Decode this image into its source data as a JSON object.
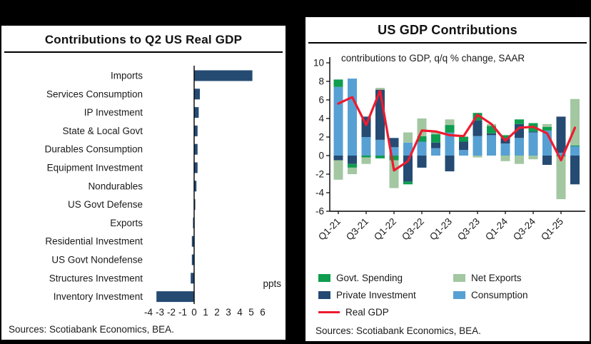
{
  "window": {
    "background": "#000000",
    "panel_background": "#ffffff"
  },
  "left_panel": {
    "title": "Contributions to Q2 US Real GDP",
    "axis_unit_label": "ppts",
    "source": "Sources: Scotiabank Economics, BEA."
  },
  "right_panel": {
    "title": "US GDP Contributions",
    "subtitle": "contributions to GDP, q/q % change, SAAR",
    "source": "Sources: Scotiabank Economics, BEA.",
    "legend": [
      {
        "label": "Govt. Spending",
        "color": "#0f9d4f",
        "type": "box"
      },
      {
        "label": "Net Exports",
        "color": "#a2c7a1",
        "type": "box"
      },
      {
        "label": "Private Investment",
        "color": "#254b73",
        "type": "box"
      },
      {
        "label": "Consumption",
        "color": "#57a0d3",
        "type": "box"
      },
      {
        "label": "Real GDP",
        "color": "#ed1b2f",
        "type": "line"
      }
    ]
  },
  "chart_data": [
    {
      "type": "bar",
      "orientation": "horizontal",
      "title": "Contributions to Q2 US Real GDP",
      "categories": [
        "Imports",
        "Services Consumption",
        "IP Investment",
        "State & Local Govt",
        "Durables Consumption",
        "Equipment Investment",
        "Nondurables",
        "US Govt Defense",
        "Exports",
        "Residential Investment",
        "US Govt Nondefense",
        "Structures Investment",
        "Inventory Investment"
      ],
      "values": [
        5.1,
        0.5,
        0.4,
        0.3,
        0.3,
        0.3,
        0.2,
        0.1,
        -0.1,
        -0.2,
        -0.2,
        -0.3,
        -3.3
      ],
      "xlabel": "ppts",
      "xlim": [
        -4,
        6
      ],
      "xticks": [
        -4,
        -3,
        -2,
        -1,
        0,
        1,
        2,
        3,
        4,
        5,
        6
      ],
      "bar_color": "#254b73",
      "source": "Sources: Scotiabank Economics, BEA."
    },
    {
      "type": "bar",
      "subtype": "stacked-with-line",
      "title": "US GDP Contributions",
      "subtitle": "contributions to GDP, q/q % change, SAAR",
      "categories": [
        "Q1-21",
        "Q2-21",
        "Q3-21",
        "Q4-21",
        "Q1-22",
        "Q2-22",
        "Q3-22",
        "Q4-22",
        "Q1-23",
        "Q2-23",
        "Q3-23",
        "Q4-23",
        "Q1-24",
        "Q2-24",
        "Q3-24",
        "Q4-24",
        "Q1-25",
        "Q2-25"
      ],
      "x_tick_labels": [
        "Q1-21",
        "Q3-21",
        "Q1-22",
        "Q3-22",
        "Q1-23",
        "Q3-23",
        "Q1-24",
        "Q3-24",
        "Q1-25"
      ],
      "series": [
        {
          "name": "Consumption",
          "color": "#57a0d3",
          "values": [
            7.4,
            8.3,
            2.0,
            1.7,
            0.9,
            1.4,
            1.5,
            0.8,
            2.5,
            0.6,
            2.1,
            2.2,
            1.3,
            1.9,
            2.5,
            2.7,
            0.3,
            1.0
          ]
        },
        {
          "name": "Private Investment",
          "color": "#254b73",
          "values": [
            -0.5,
            -0.9,
            2.2,
            5.4,
            1.0,
            -2.8,
            -1.3,
            0.6,
            -1.7,
            0.9,
            1.7,
            0.2,
            0.6,
            1.5,
            0.1,
            -1.0,
            3.9,
            -3.1
          ]
        },
        {
          "name": "Govt. Spending",
          "color": "#0f9d4f",
          "values": [
            0.8,
            -0.4,
            -0.2,
            -0.3,
            -0.5,
            -0.3,
            0.6,
            0.9,
            0.8,
            0.5,
            0.8,
            0.8,
            0.3,
            0.5,
            0.9,
            0.4,
            -0.1,
            0.1
          ]
        },
        {
          "name": "Net Exports",
          "color": "#a2c7a1",
          "values": [
            -2.1,
            -0.7,
            -0.7,
            0.2,
            -3.0,
            1.1,
            1.9,
            0.3,
            0.6,
            0.1,
            -0.2,
            0.2,
            -0.6,
            -0.9,
            -0.4,
            0.3,
            -4.6,
            5.0
          ]
        }
      ],
      "line": {
        "name": "Real GDP",
        "color": "#ed1b2f",
        "values": [
          5.6,
          6.3,
          3.3,
          7.0,
          -1.6,
          -0.6,
          2.7,
          2.6,
          2.2,
          2.1,
          4.4,
          3.4,
          1.6,
          3.0,
          3.1,
          2.4,
          -0.5,
          3.0
        ]
      },
      "ylim": [
        -6,
        10
      ],
      "yticks": [
        10,
        8,
        6,
        4,
        2,
        0,
        -2,
        -4,
        -6
      ],
      "legend_position": "below",
      "grid": false,
      "source": "Sources: Scotiabank Economics, BEA."
    }
  ]
}
